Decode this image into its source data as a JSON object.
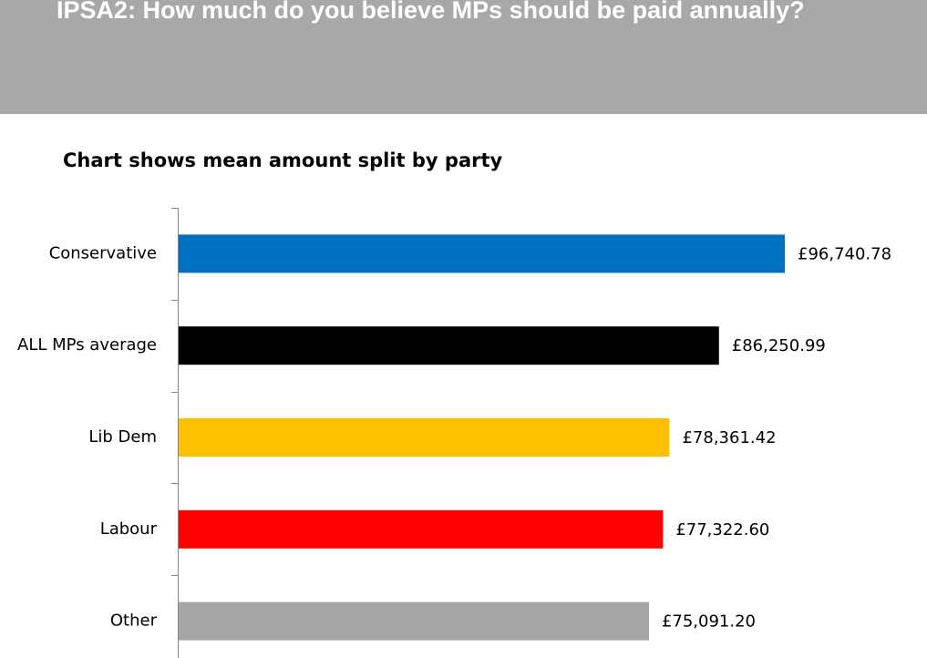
{
  "chart_data": {
    "type": "bar",
    "orientation": "horizontal",
    "title": "IPSA2: How much do you believe MPs should be paid annually?",
    "subtitle": "Chart shows mean amount split by party",
    "categories": [
      "Conservative",
      "ALL MPs average",
      "Lib Dem",
      "Labour",
      "Other"
    ],
    "values": [
      96740.78,
      86250.99,
      78361.42,
      77322.6,
      75091.2
    ],
    "value_labels": [
      "£96,740.78",
      "£86,250.99",
      "£78,361.42",
      "£77,322.60",
      "£75,091.20"
    ],
    "colors": [
      "#0070c0",
      "#000000",
      "#ffc000",
      "#ff0000",
      "#a6a6a6"
    ]
  }
}
